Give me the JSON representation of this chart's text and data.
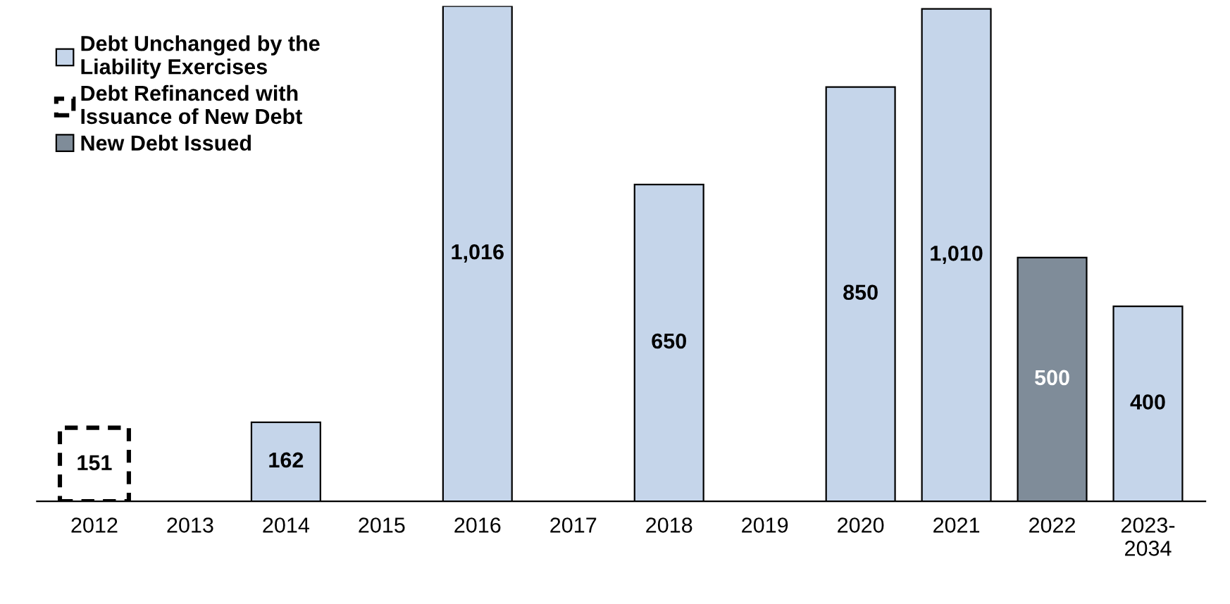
{
  "chart_data": {
    "type": "bar",
    "legend": "top left",
    "grid": false,
    "categories": [
      "2012",
      "2013",
      "2014",
      "2015",
      "2016",
      "2017",
      "2018",
      "2019",
      "2020",
      "2021",
      "2022",
      "2023-\n2034"
    ],
    "series": [
      {
        "name": "Debt Unchanged by the\nLiability Exercises",
        "color": "#c5d5ea",
        "values": [
          null,
          null,
          162,
          null,
          1016,
          null,
          650,
          null,
          850,
          1010,
          null,
          400
        ],
        "value_labels": [
          null,
          null,
          "162",
          null,
          "1,016",
          null,
          "650",
          null,
          "850",
          "1,010",
          null,
          "400"
        ]
      },
      {
        "name": "Debt Refinanced with\nIssuance of New Debt",
        "color": "#ffffff",
        "line_style": "dashed",
        "values": [
          151,
          null,
          null,
          null,
          null,
          null,
          null,
          null,
          null,
          null,
          null,
          null
        ],
        "value_labels": [
          "151",
          null,
          null,
          null,
          null,
          null,
          null,
          null,
          null,
          null,
          null,
          null
        ]
      },
      {
        "name": "New Debt Issued",
        "color": "#7f8c99",
        "values": [
          null,
          null,
          null,
          null,
          null,
          null,
          null,
          null,
          null,
          null,
          500,
          null
        ],
        "value_labels": [
          null,
          null,
          null,
          null,
          null,
          null,
          null,
          null,
          null,
          null,
          "500",
          null
        ]
      }
    ]
  }
}
